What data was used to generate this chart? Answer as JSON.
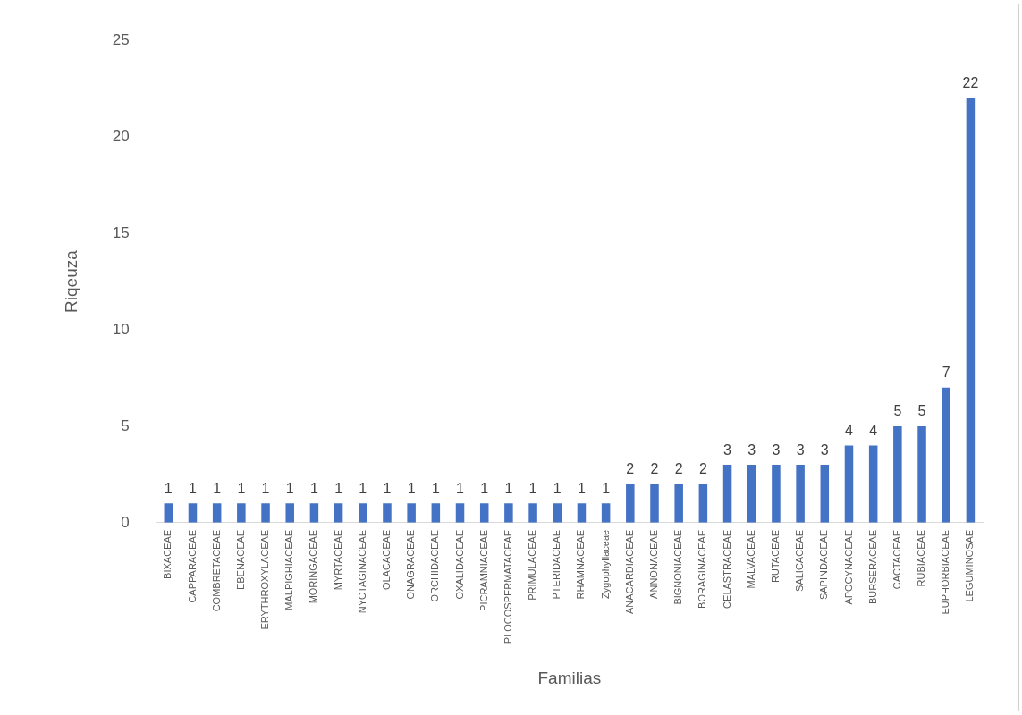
{
  "chart_data": {
    "type": "bar",
    "xlabel": "Familias",
    "ylabel": "Riqeuza",
    "categories": [
      "BIXACEAE",
      "CAPPARACEAE",
      "COMBRETACEAE",
      "EBENACEAE",
      "ERYTHROXYLACEAE",
      "MALPIGHIACEAE",
      "MORINGACEAE",
      "MYRTACEAE",
      "NYCTAGINACEAE",
      "OLACACEAE",
      "ONAGRACEAE",
      "ORCHIDACEAE",
      "OXALIDACEAE",
      "PICRAMNIACEAE",
      "PLOCOSPERMATACEAE",
      "PRIMULACEAE",
      "PTERIDACEAE",
      "RHAMNACEAE",
      "Zygophyllaceae",
      "ANACARDIACEAE",
      "ANNONACEAE",
      "BIGNONIACEAE",
      "BORAGINACEAE",
      "CELASTRACEAE",
      "MALVACEAE",
      "RUTACEAE",
      "SALICACEAE",
      "SAPINDACEAE",
      "APOCYNACEAE",
      "BURSERACEAE",
      "CACTACEAE",
      "RUBIACEAE",
      "EUPHORBIACEAE",
      "LEGUMINOSAE"
    ],
    "values": [
      1,
      1,
      1,
      1,
      1,
      1,
      1,
      1,
      1,
      1,
      1,
      1,
      1,
      1,
      1,
      1,
      1,
      1,
      1,
      2,
      2,
      2,
      2,
      3,
      3,
      3,
      3,
      3,
      4,
      4,
      5,
      5,
      7,
      22
    ],
    "color": "#4472c4",
    "ylim": [
      0,
      25
    ],
    "yticks": [
      0,
      5,
      10,
      15,
      20,
      25
    ],
    "grid": false,
    "data_labels": true
  }
}
